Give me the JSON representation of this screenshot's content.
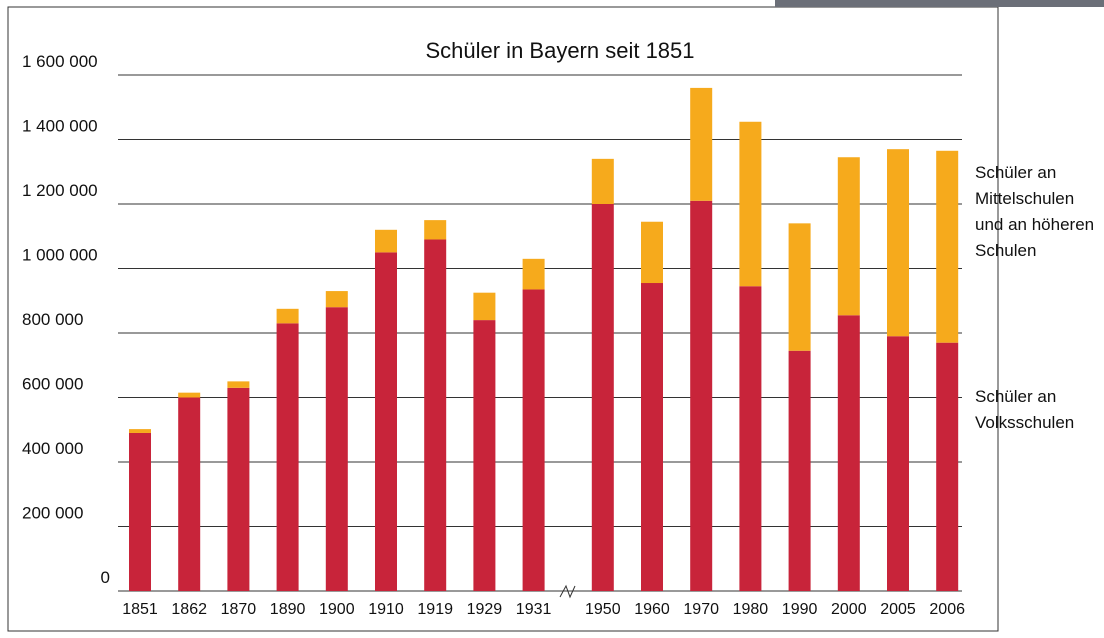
{
  "chart_data": {
    "type": "stacked-bar",
    "title": "Schüler in Bayern seit 1851",
    "categories": [
      "1851",
      "1862",
      "1870",
      "1890",
      "1900",
      "1910",
      "1919",
      "1929",
      "1931",
      "1950",
      "1960",
      "1970",
      "1980",
      "1990",
      "2000",
      "2005",
      "2006"
    ],
    "series": [
      {
        "name": "Schüler an Volksschulen",
        "color": "#c8243a",
        "values": [
          490000,
          600000,
          630000,
          830000,
          880000,
          1050000,
          1090000,
          840000,
          935000,
          1200000,
          955000,
          1210000,
          945000,
          745000,
          855000,
          790000,
          770000
        ]
      },
      {
        "name": "Schüler an Mittelschulen und an höheren Schulen",
        "color": "#f6aa1c",
        "values": [
          12000,
          15000,
          20000,
          45000,
          50000,
          70000,
          60000,
          85000,
          95000,
          140000,
          190000,
          350000,
          510000,
          395000,
          490000,
          580000,
          595000
        ]
      }
    ],
    "ylim": [
      0,
      1600000
    ],
    "yticks": [
      0,
      {
        "value": 200000,
        "label": "200 000"
      },
      {
        "value": 400000,
        "label": "400 000"
      },
      {
        "value": 600000,
        "label": "600 000"
      },
      {
        "value": 800000,
        "label": "800 000"
      },
      {
        "value": 1000000,
        "label": "1 000 000"
      },
      {
        "value": 1200000,
        "label": "1 200 000"
      },
      {
        "value": 1400000,
        "label": "1 400 000"
      },
      {
        "value": 1600000,
        "label": "1 600 000"
      }
    ],
    "grid": true
  }
}
